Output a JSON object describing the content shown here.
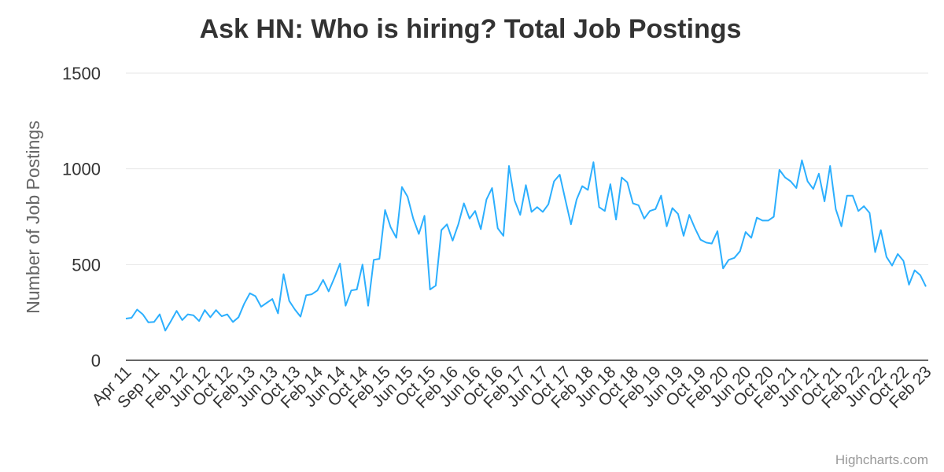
{
  "chart_data": {
    "type": "line",
    "title": "Ask HN: Who is hiring? Total Job Postings",
    "y_label": "Number of Job Postings",
    "credit": "Highcharts.com",
    "categories": [
      "Apr 11",
      null,
      null,
      null,
      null,
      "Sep 11",
      null,
      null,
      null,
      null,
      "Feb 12",
      null,
      null,
      null,
      "Jun 12",
      null,
      null,
      null,
      "Oct 12",
      null,
      null,
      null,
      "Feb 13",
      null,
      null,
      null,
      "Jun 13",
      null,
      null,
      null,
      "Oct 13",
      null,
      null,
      null,
      "Feb 14",
      null,
      null,
      null,
      "Jun 14",
      null,
      null,
      null,
      "Oct 14",
      null,
      null,
      null,
      "Feb 15",
      null,
      null,
      null,
      "Jun 15",
      null,
      null,
      null,
      "Oct 15",
      null,
      null,
      null,
      "Feb 16",
      null,
      null,
      null,
      "Jun 16",
      null,
      null,
      null,
      "Oct 16",
      null,
      null,
      null,
      "Feb 17",
      null,
      null,
      null,
      "Jun 17",
      null,
      null,
      null,
      "Oct 17",
      null,
      null,
      null,
      "Feb 18",
      null,
      null,
      null,
      "Jun 18",
      null,
      null,
      null,
      "Oct 18",
      null,
      null,
      null,
      "Feb 19",
      null,
      null,
      null,
      "Jun 19",
      null,
      null,
      null,
      "Oct 19",
      null,
      null,
      null,
      "Feb 20",
      null,
      null,
      null,
      "Jun 20",
      null,
      null,
      null,
      "Oct 20",
      null,
      null,
      null,
      "Feb 21",
      null,
      null,
      null,
      "Jun 21",
      null,
      null,
      null,
      "Oct 21",
      null,
      null,
      null,
      "Feb 22",
      null,
      null,
      null,
      "Jun 22",
      null,
      null,
      null,
      "Oct 22",
      null,
      null,
      null,
      "Feb 23"
    ],
    "series": [
      {
        "name": "Job Postings",
        "color": "#2caffe",
        "values": [
          218,
          222,
          265,
          240,
          198,
          200,
          240,
          155,
          205,
          258,
          210,
          240,
          235,
          205,
          262,
          225,
          262,
          230,
          240,
          200,
          225,
          295,
          350,
          335,
          280,
          300,
          320,
          245,
          450,
          310,
          265,
          228,
          340,
          345,
          365,
          420,
          360,
          430,
          505,
          285,
          365,
          370,
          500,
          285,
          525,
          530,
          785,
          695,
          640,
          905,
          855,
          740,
          660,
          755,
          370,
          390,
          680,
          710,
          625,
          710,
          820,
          740,
          780,
          685,
          840,
          900,
          690,
          650,
          1015,
          835,
          760,
          915,
          775,
          800,
          775,
          815,
          935,
          970,
          840,
          710,
          840,
          910,
          890,
          1035,
          800,
          780,
          920,
          735,
          955,
          930,
          820,
          810,
          740,
          780,
          790,
          860,
          700,
          795,
          765,
          650,
          760,
          690,
          630,
          615,
          610,
          675,
          480,
          525,
          535,
          570,
          670,
          640,
          745,
          730,
          730,
          750,
          995,
          955,
          935,
          900,
          1045,
          935,
          895,
          975,
          830,
          1015,
          790,
          700,
          860,
          860,
          780,
          805,
          770,
          565,
          680,
          540,
          495,
          555,
          520,
          395,
          470,
          445,
          385
        ]
      }
    ],
    "ylim": [
      0,
      1500
    ],
    "yticks": [
      0,
      500,
      1000,
      1500
    ],
    "grid": true
  }
}
